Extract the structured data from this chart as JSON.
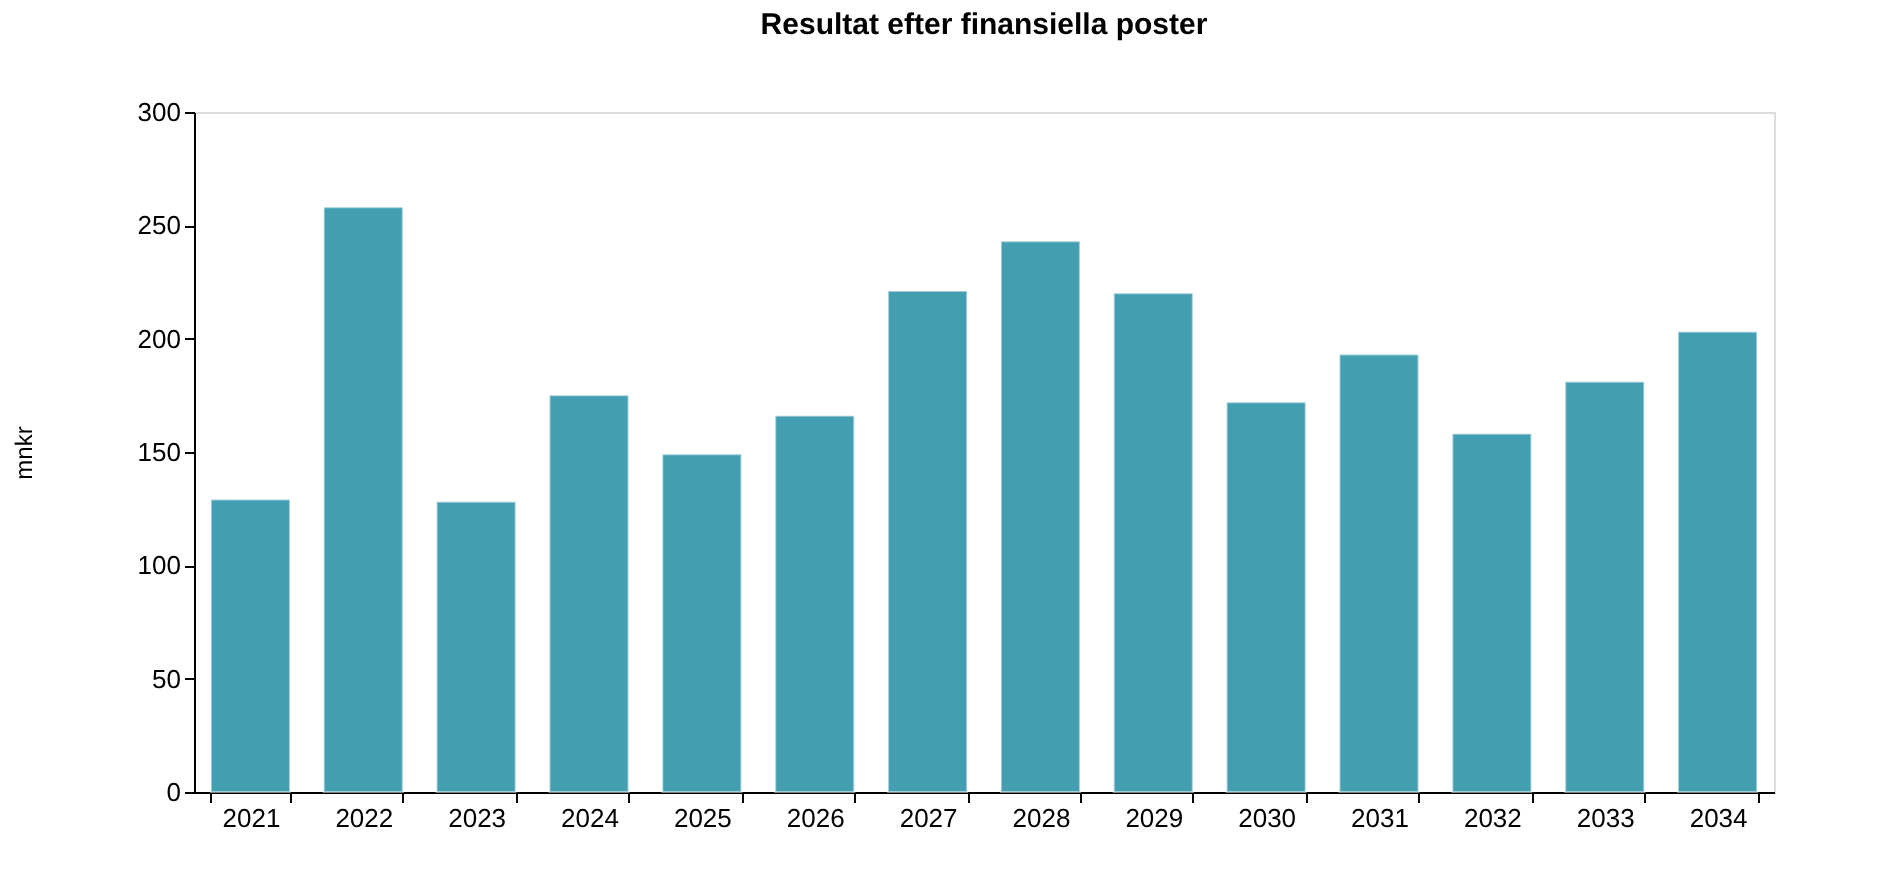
{
  "chart_data": {
    "type": "bar",
    "title": "Resultat efter finansiella  poster",
    "ylabel": "mnkr",
    "categories": [
      "2021",
      "2022",
      "2023",
      "2024",
      "2025",
      "2026",
      "2027",
      "2028",
      "2029",
      "2030",
      "2031",
      "2032",
      "2033",
      "2034"
    ],
    "values": [
      129,
      258,
      128,
      175,
      149,
      166,
      221,
      243,
      220,
      172,
      193,
      158,
      181,
      203
    ],
    "color": "#429eb0",
    "ylim": [
      0,
      300
    ],
    "yticks": [
      0,
      50,
      100,
      150,
      200,
      250,
      300
    ],
    "grid": false
  }
}
